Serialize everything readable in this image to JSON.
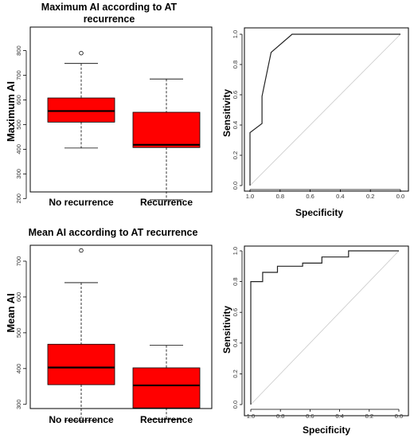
{
  "chart_data": [
    {
      "type": "box",
      "title": "Maximum AI according to AT recurrence",
      "title_lines": [
        "Maximum AI according to AT",
        "recurrence"
      ],
      "ylabel": "Maximum AI",
      "ylim": [
        180,
        810
      ],
      "yticks": [
        "200",
        "300",
        "400",
        "500",
        "600",
        "700",
        "800"
      ],
      "fill": "#ff0000",
      "groups": [
        {
          "name": "No recurrence",
          "whisker_low": 405,
          "q1": 510,
          "median": 555,
          "q3": 608,
          "whisker_high": 748,
          "outliers": [
            790
          ]
        },
        {
          "name": "Recurrence",
          "whisker_low": 195,
          "q1": 407,
          "median": 418,
          "q3": 550,
          "whisker_high": 685,
          "outliers": []
        }
      ]
    },
    {
      "type": "line",
      "ylabel": "Sensitivity",
      "xlabel": "Specificity",
      "xlim": [
        1.0,
        0.0
      ],
      "ylim": [
        0.0,
        1.0
      ],
      "xticks": [
        "1.0",
        "0.8",
        "0.6",
        "0.4",
        "0.2",
        "0.0"
      ],
      "yticks": [
        "0.0",
        "0.2",
        "0.4",
        "0.6",
        "0.8",
        "1.0"
      ],
      "diagonal": true,
      "series": [
        {
          "specificity": [
            1.0,
            1.0,
            0.92,
            0.92,
            0.86,
            0.72,
            0.0
          ],
          "sensitivity": [
            0.0,
            0.35,
            0.41,
            0.59,
            0.88,
            1.0,
            1.0
          ]
        }
      ]
    },
    {
      "type": "box",
      "title": "Mean AI according to AT recurrence",
      "ylabel": "Mean AI",
      "ylim": [
        255,
        760
      ],
      "yticks": [
        "300",
        "400",
        "500",
        "600",
        "700"
      ],
      "fill": "#ff0000",
      "groups": [
        {
          "name": "No recurrence",
          "whisker_low": 255,
          "q1": 355,
          "median": 403,
          "q3": 468,
          "whisker_high": 640,
          "outliers": [
            730
          ]
        },
        {
          "name": "Recurrence",
          "whisker_low": 258,
          "q1": 290,
          "median": 353,
          "q3": 402,
          "whisker_high": 465,
          "outliers": []
        }
      ]
    },
    {
      "type": "line",
      "ylabel": "Sensitivity",
      "xlabel": "Specificity",
      "xlim": [
        1.0,
        0.0
      ],
      "ylim": [
        0.0,
        1.0
      ],
      "xticks": [
        "1.0",
        "0.8",
        "0.6",
        "0.4",
        "0.2",
        "0.0"
      ],
      "yticks": [
        "0.0",
        "0.2",
        "0.4",
        "0.6",
        "0.8",
        "1.0"
      ],
      "diagonal": true,
      "series": [
        {
          "specificity": [
            1.0,
            1.0,
            0.92,
            0.92,
            0.82,
            0.82,
            0.65,
            0.65,
            0.52,
            0.52,
            0.34,
            0.34,
            0.0
          ],
          "sensitivity": [
            0.0,
            0.8,
            0.8,
            0.86,
            0.86,
            0.9,
            0.9,
            0.92,
            0.92,
            0.96,
            0.96,
            1.0,
            1.0
          ]
        }
      ]
    }
  ]
}
